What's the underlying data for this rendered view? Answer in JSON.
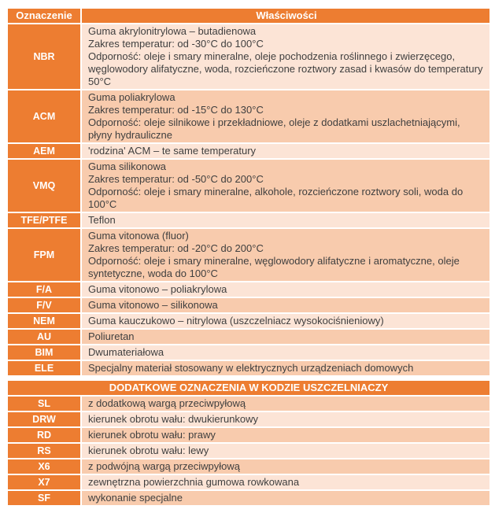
{
  "header": {
    "col1": "Oznaczenie",
    "col2": "Właściwości"
  },
  "rows": [
    {
      "code": "NBR",
      "desc": "Guma akrylonitrylowa – butadienowa\nZakres temperatur: od -30°C do 100°C\nOdporność: oleje i smary mineralne, oleje pochodzenia roślinnego i zwierzęcego, węglowodory alifatyczne, woda, rozcieńczone roztwory zasad i kwasów do temperatury 50°C"
    },
    {
      "code": "ACM",
      "desc": "Guma poliakrylowa\nZakres temperatur: od -15°C do 130°C\nOdporność: oleje silnikowe i przekładniowe, oleje z dodatkami uszlachetniającymi, płyny hydrauliczne"
    },
    {
      "code": "AEM",
      "desc": "'rodzina' ACM – te same temperatury"
    },
    {
      "code": "VMQ",
      "desc": "Guma silikonowa\nZakres temperatur: od -50°C do 200°C\nOdporność: oleje i smary mineralne, alkohole, rozcieńczone roztwory soli, woda do 100°C"
    },
    {
      "code": "TFE/PTFE",
      "desc": "Teflon"
    },
    {
      "code": "FPM",
      "desc": "Guma vitonowa (fluor)\nZakres temperatur: od -20°C do 200°C\nOdporność: oleje i smary mineralne, węglowodory alifatyczne i aromatyczne, oleje syntetyczne, woda do 100°C"
    },
    {
      "code": "F/A",
      "desc": "Guma vitonowo – poliakrylowa"
    },
    {
      "code": "F/V",
      "desc": "Guma vitonowo – silikonowa"
    },
    {
      "code": "NEM",
      "desc": "Guma kauczukowo – nitrylowa (uszczelniacz wysokociśnieniowy)"
    },
    {
      "code": "AU",
      "desc": "Poliuretan"
    },
    {
      "code": "BIM",
      "desc": "Dwumateriałowa"
    },
    {
      "code": "ELE",
      "desc": "Specjalny materiał stosowany w elektrycznych urządzeniach domowych"
    }
  ],
  "section2": {
    "title": "DODATKOWE OZNACZENIA W KODZIE USZCZELNIACZY",
    "rows": [
      {
        "code": "SL",
        "desc": "z dodatkową wargą przeciwpyłową"
      },
      {
        "code": "DRW",
        "desc": "kierunek obrotu wału: dwukierunkowy"
      },
      {
        "code": "RD",
        "desc": "kierunek obrotu wału: prawy"
      },
      {
        "code": "RS",
        "desc": "kierunek obrotu wału: lewy"
      },
      {
        "code": "X6",
        "desc": "z podwójną wargą przeciwpyłową"
      },
      {
        "code": "X7",
        "desc": "zewnętrzna powierzchnia gumowa rowkowana"
      },
      {
        "code": "SF",
        "desc": "wykonanie specjalne"
      }
    ]
  },
  "colors": {
    "accent": "#ED7D31",
    "band_light": "#FCE4D6",
    "band_dark": "#F8CBAD",
    "text": "#3F3F3F",
    "header_text": "#FFFFFF"
  }
}
